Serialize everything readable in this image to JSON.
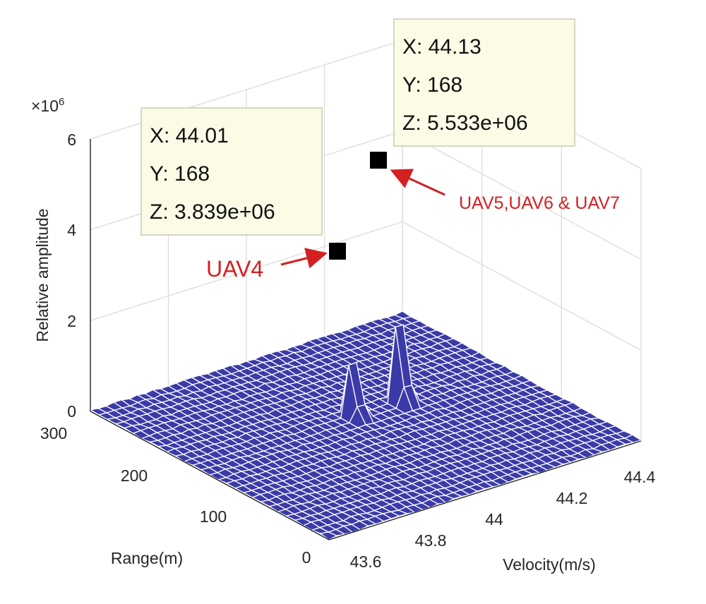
{
  "chart_data": {
    "type": "surface-3d",
    "title": "",
    "xlabel": "Velocity(m/s)",
    "ylabel": "Range(m)",
    "zlabel": "Relative amplitude",
    "z_exponent_label": "×10",
    "z_exponent_power": "6",
    "xlim": [
      43.6,
      44.4
    ],
    "ylim": [
      0,
      300
    ],
    "zlim": [
      0,
      6
    ],
    "x_ticks": [
      "43.6",
      "43.8",
      "44",
      "44.2",
      "44.4"
    ],
    "y_ticks": [
      "0",
      "100",
      "200",
      "300"
    ],
    "z_ticks": [
      "0",
      "2",
      "4",
      "6"
    ],
    "peaks": [
      {
        "x": 44.01,
        "y": 168,
        "z": 3.839
      },
      {
        "x": 44.13,
        "y": 168,
        "z": 5.533
      }
    ],
    "datatips": [
      {
        "x_text": "X: 44.01",
        "y_text": "Y: 168",
        "z_text": "Z: 3.839e+06"
      },
      {
        "x_text": "X: 44.13",
        "y_text": "Y: 168",
        "z_text": "Z: 5.533e+06"
      }
    ],
    "annotations": [
      {
        "text": "UAV4"
      },
      {
        "text": "UAV5,UAV6 & UAV7"
      }
    ],
    "colors": {
      "surface": "#3a3aa8",
      "mesh": "#ffffff",
      "arrow": "#d42020",
      "datatip_bg": "#fbfbe6"
    }
  }
}
